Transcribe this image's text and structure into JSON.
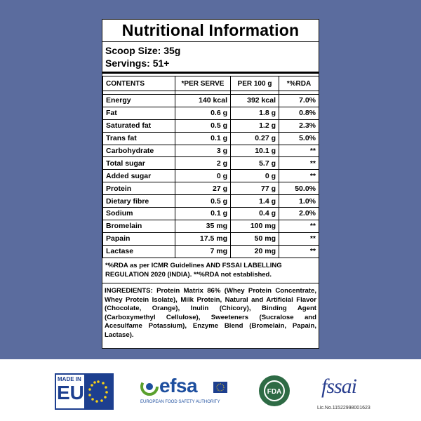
{
  "header": {
    "title": "Nutritional Information",
    "scoop_size": "Scoop Size: 35g",
    "servings": "Servings: 51+"
  },
  "table": {
    "columns": [
      "CONTENTS",
      "*PER SERVE",
      "PER 100 g",
      "*%RDA"
    ],
    "rows": [
      [
        "Energy",
        "140 kcal",
        "392 kcal",
        "7.0%"
      ],
      [
        "Fat",
        "0.6 g",
        "1.8 g",
        "0.8%"
      ],
      [
        "Saturated fat",
        "0.5 g",
        "1.2 g",
        "2.3%"
      ],
      [
        "Trans fat",
        "0.1 g",
        "0.27 g",
        "5.0%"
      ],
      [
        "Carbohydrate",
        "3 g",
        "10.1 g",
        "**"
      ],
      [
        "Total sugar",
        "2 g",
        "5.7 g",
        "**"
      ],
      [
        "Added sugar",
        "0 g",
        "0 g",
        "**"
      ],
      [
        "Protein",
        "27 g",
        "77 g",
        "50.0%"
      ],
      [
        "Dietary fibre",
        "0.5 g",
        "1.4 g",
        "1.0%"
      ],
      [
        "Sodium",
        "0.1 g",
        "0.4 g",
        "2.0%"
      ],
      [
        "Bromelain",
        "35 mg",
        "100 mg",
        "**"
      ],
      [
        "Papain",
        "17.5 mg",
        "50 mg",
        "**"
      ],
      [
        "Lactase",
        "7 mg",
        "20 mg",
        "**"
      ]
    ]
  },
  "footnote": "*%RDA as per ICMR Guidelines AND FSSAI LABELLING REGULATION 2020 (INDIA). **%RDA not established.",
  "ingredients": "INGREDIENTS: Protein Matrix 86% (Whey Protein Concentrate, Whey Protein Isolate), Milk Protein, Natural and Artificial Flavor (Chocolate, Orange), Inulin (Chicory), Binding Agent (Carboxymethyl Cellulose), Sweeteners (Sucralose and Acesulfame Potassium), Enzyme Blend (Bromelain, Papain, Lactase).",
  "logos": {
    "made_in": "MADE IN",
    "eu": "EU",
    "efsa": "efsa",
    "efsa_name": "EUROPEAN FOOD SAFETY AUTHORITY",
    "fda": "FDA",
    "fssai": "fssai",
    "license": "Lic.No.11522998001623"
  }
}
